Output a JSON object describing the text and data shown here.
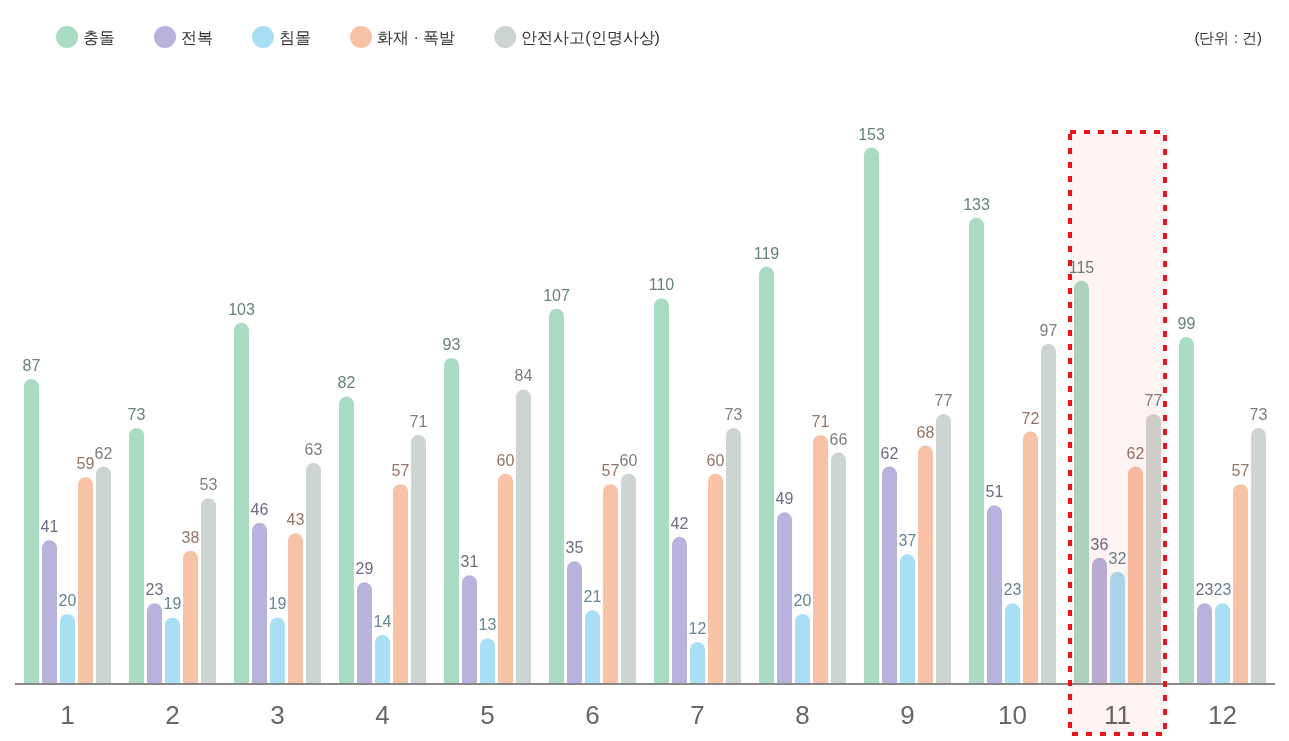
{
  "chart_data": {
    "type": "bar",
    "categories": [
      "1",
      "2",
      "3",
      "4",
      "5",
      "6",
      "7",
      "8",
      "9",
      "10",
      "11",
      "12"
    ],
    "series": [
      {
        "name": "충돌",
        "color": "#a9dcc3",
        "values": [
          87,
          73,
          103,
          82,
          93,
          107,
          110,
          119,
          153,
          133,
          115,
          99
        ]
      },
      {
        "name": "전복",
        "color": "#b7b3dc",
        "values": [
          41,
          23,
          46,
          29,
          31,
          35,
          42,
          49,
          62,
          51,
          36,
          23
        ]
      },
      {
        "name": "침몰",
        "color": "#a9dff5",
        "values": [
          20,
          19,
          19,
          14,
          13,
          21,
          12,
          20,
          37,
          23,
          32,
          23
        ]
      },
      {
        "name": "화재 · 폭발",
        "color": "#f8c2a6",
        "values": [
          59,
          38,
          43,
          57,
          60,
          57,
          60,
          71,
          68,
          72,
          62,
          57
        ]
      },
      {
        "name": "안전사고(인명사상)",
        "color": "#cdd5d2",
        "values": [
          62,
          53,
          63,
          71,
          84,
          60,
          73,
          66,
          77,
          97,
          77,
          73
        ]
      }
    ],
    "data_labels": true,
    "legend": "top left",
    "annotations": [
      "(단위 : 건)"
    ],
    "bands": [
      {
        "axis": "x",
        "from": "11",
        "to": "11",
        "label": null,
        "color": "#e8141c"
      }
    ]
  }
}
